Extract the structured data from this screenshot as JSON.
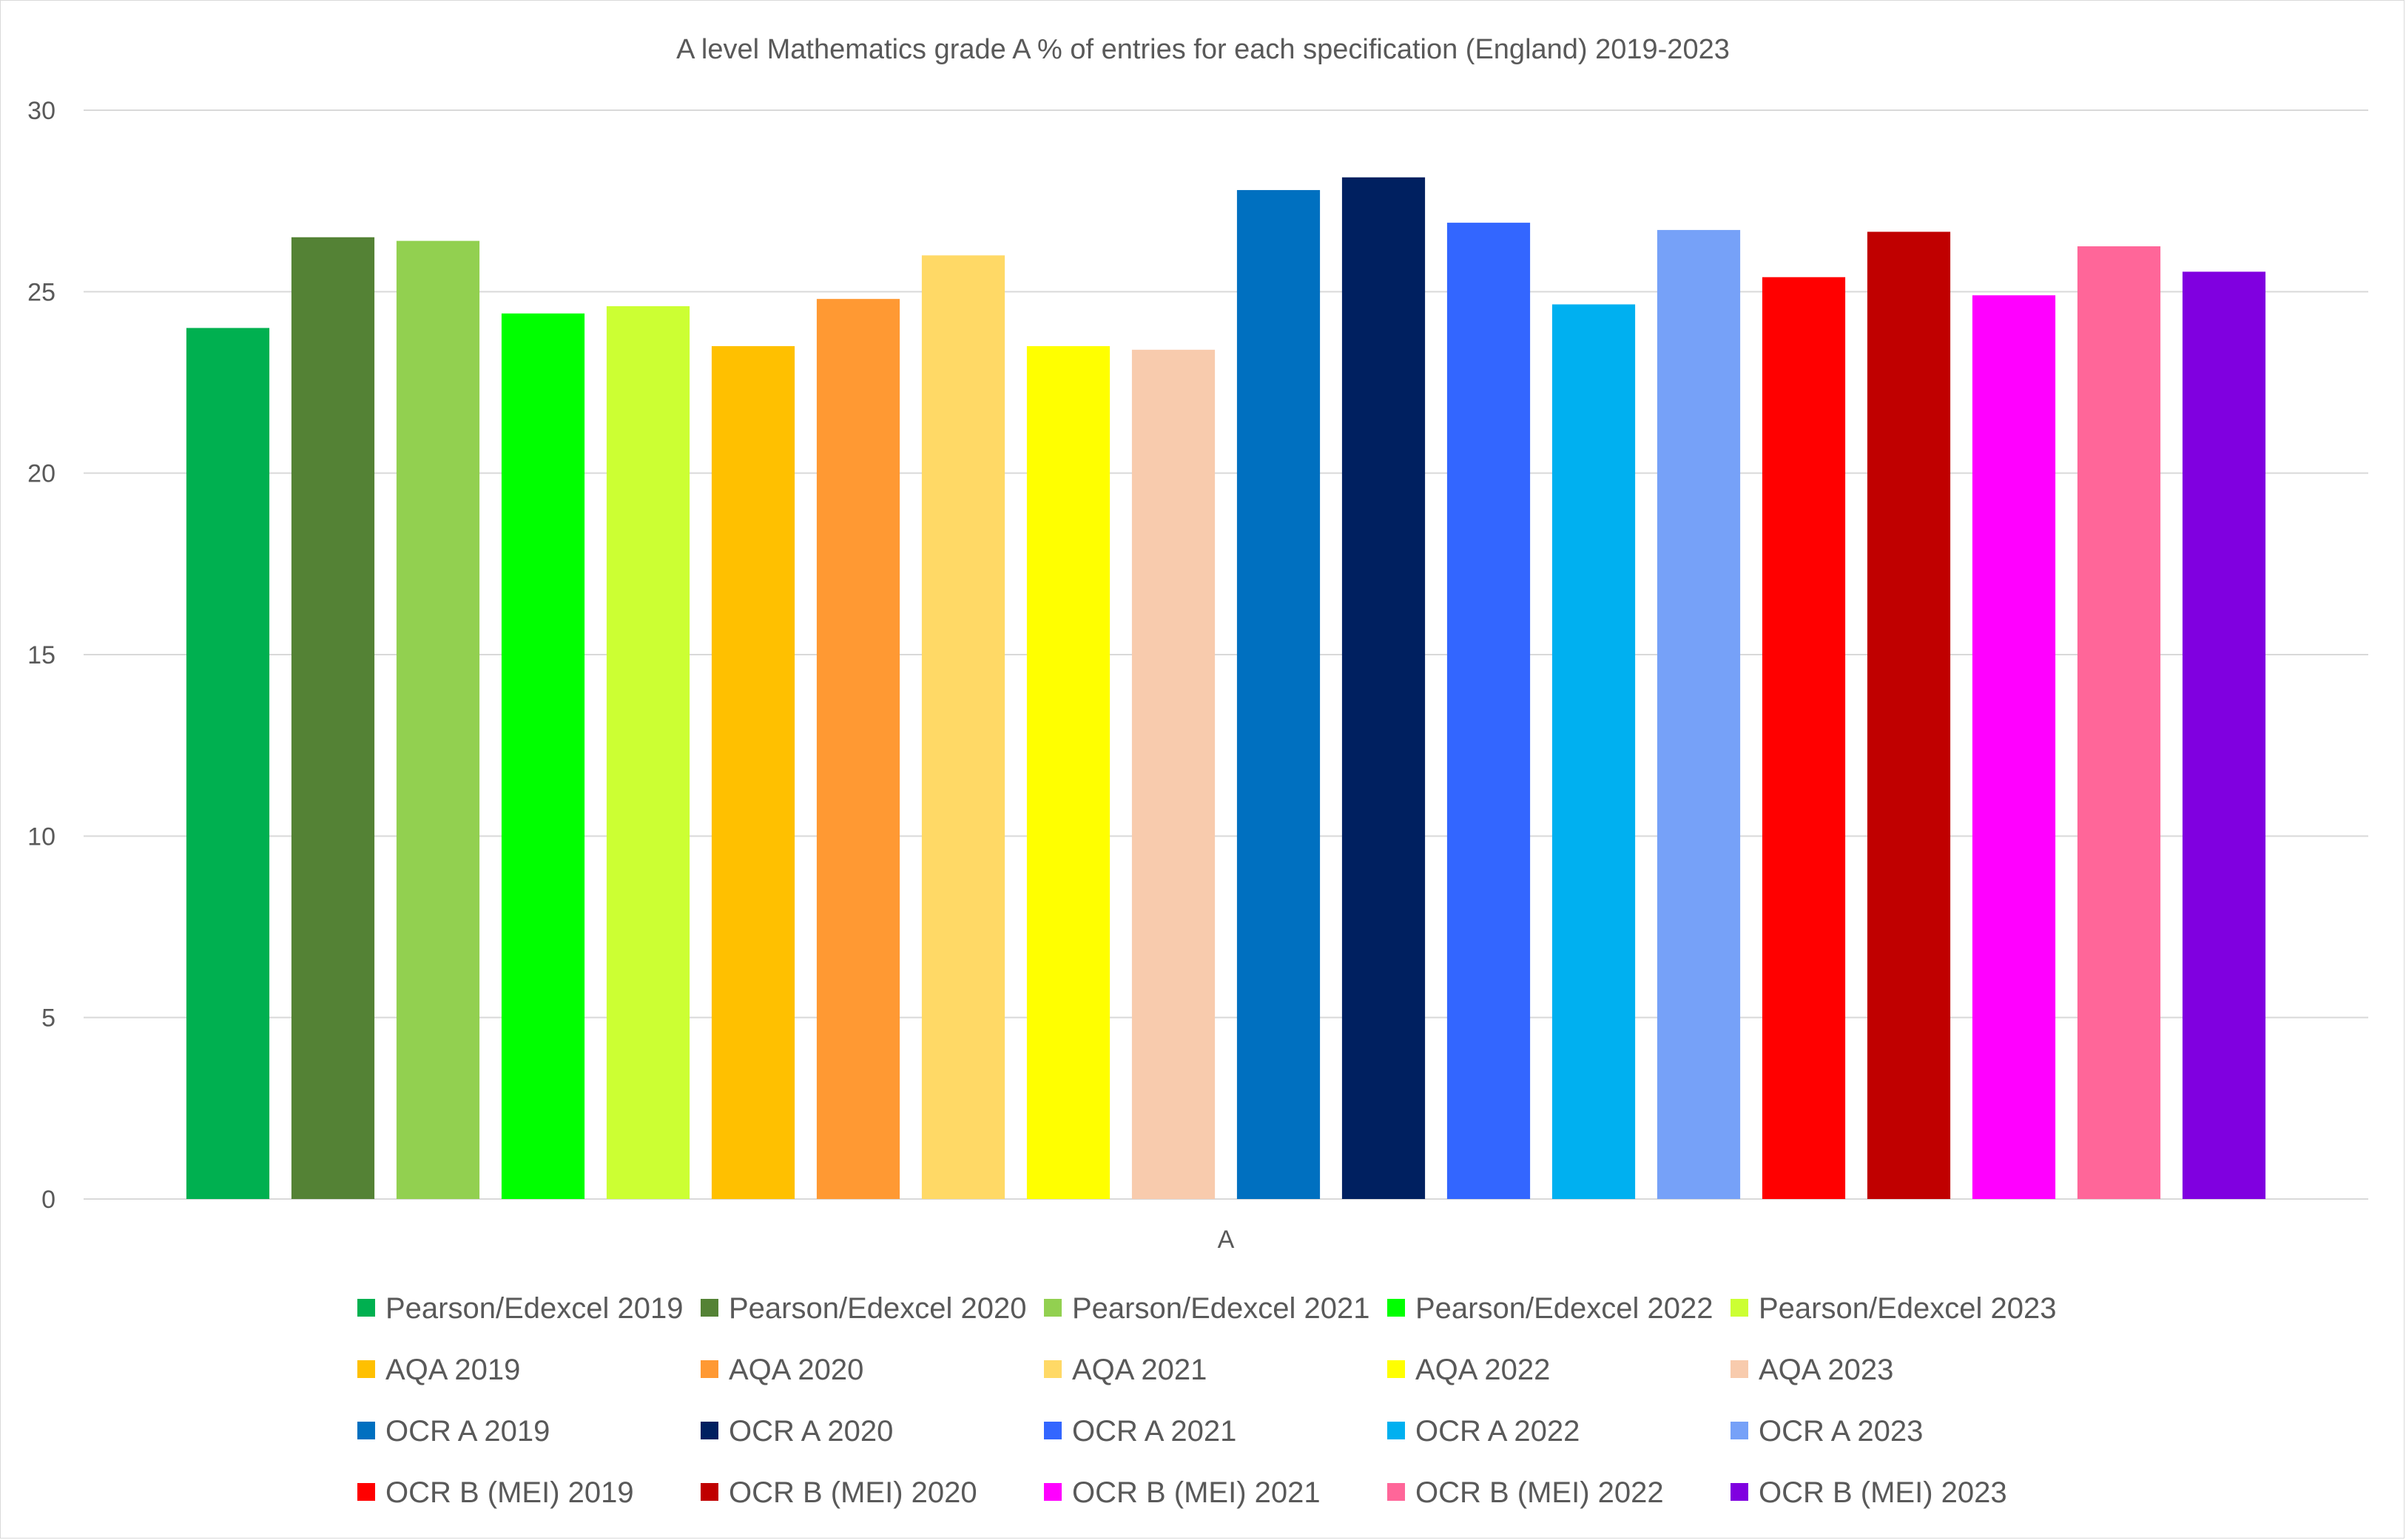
{
  "chart_data": {
    "type": "bar",
    "title": "A level Mathematics grade A % of entries for each specification (England) 2019-2023",
    "categories": [
      "A"
    ],
    "ylim": [
      0,
      30
    ],
    "yticks": [
      "0",
      "5",
      "10",
      "15",
      "20",
      "25",
      "30"
    ],
    "grid": true,
    "legend_position": "bottom",
    "series": [
      {
        "name": "Pearson/Edexcel 2019",
        "values": [
          24.0
        ],
        "color": "#00B050"
      },
      {
        "name": "Pearson/Edexcel 2020",
        "values": [
          26.5
        ],
        "color": "#548235"
      },
      {
        "name": "Pearson/Edexcel 2021",
        "values": [
          26.4
        ],
        "color": "#92D050"
      },
      {
        "name": "Pearson/Edexcel 2022",
        "values": [
          24.4
        ],
        "color": "#00FF00"
      },
      {
        "name": "Pearson/Edexcel 2023",
        "values": [
          24.6
        ],
        "color": "#CCFF33"
      },
      {
        "name": "AQA 2019",
        "values": [
          23.5
        ],
        "color": "#FFC000"
      },
      {
        "name": "AQA 2020",
        "values": [
          24.8
        ],
        "color": "#FF9933"
      },
      {
        "name": "AQA 2021",
        "values": [
          26.0
        ],
        "color": "#FFD966"
      },
      {
        "name": "AQA 2022",
        "values": [
          23.5
        ],
        "color": "#FFFF00"
      },
      {
        "name": "AQA 2023",
        "values": [
          23.4
        ],
        "color": "#F8CBAD"
      },
      {
        "name": "OCR A 2019",
        "values": [
          27.8
        ],
        "color": "#0070C0"
      },
      {
        "name": "OCR A 2020",
        "values": [
          28.15
        ],
        "color": "#002060"
      },
      {
        "name": "OCR A 2021",
        "values": [
          26.9
        ],
        "color": "#3366FF"
      },
      {
        "name": "OCR A 2022",
        "values": [
          24.65
        ],
        "color": "#00B0F0"
      },
      {
        "name": "OCR A 2023",
        "values": [
          26.7
        ],
        "color": "#76A1F8"
      },
      {
        "name": "OCR B (MEI) 2019",
        "values": [
          25.4
        ],
        "color": "#FF0000"
      },
      {
        "name": "OCR B (MEI) 2020",
        "values": [
          26.65
        ],
        "color": "#C00000"
      },
      {
        "name": "OCR B (MEI) 2021",
        "values": [
          24.9
        ],
        "color": "#FF00FF"
      },
      {
        "name": "OCR B (MEI) 2022",
        "values": [
          26.25
        ],
        "color": "#FF6699"
      },
      {
        "name": "OCR B (MEI) 2023",
        "values": [
          25.55
        ],
        "color": "#8000E0"
      }
    ]
  }
}
